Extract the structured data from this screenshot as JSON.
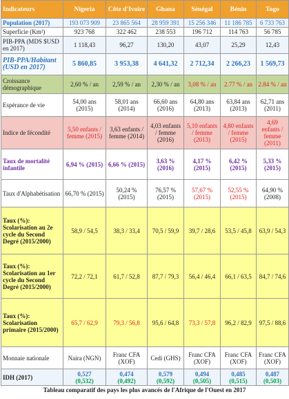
{
  "header": {
    "cells": [
      "Indicateurs",
      "Nigeria",
      "Côte d'Ivoire",
      "Ghana",
      "Sénégal",
      "Bénin",
      "Togo"
    ]
  },
  "rows": [
    {
      "label": "Population (2017)",
      "cells": [
        "193 073 909",
        "23 865 564",
        "28 959 391",
        "15 256 346",
        "11 186 785",
        "6 733 763"
      ]
    },
    {
      "label": "Superficie (Km²)",
      "cells": [
        "923 768",
        "322 462",
        "238 553",
        "196 712",
        "114 763",
        "56 785"
      ]
    },
    {
      "label": "PIB-PPA (MDS $USD en 2017)",
      "cells": [
        "1 118,43",
        "96,27",
        "130,20",
        "43,07",
        "25,29",
        "12,43"
      ]
    },
    {
      "label": "PIB-PPA/Habitant (USD en 2017)",
      "cells": [
        "5 860,85",
        "3 953,38",
        "4 641,32",
        "2 712,34",
        "2 266,23",
        "1 569,73"
      ]
    },
    {
      "label": "Croissance démographique",
      "cells": [
        "2,60 % / an",
        "2,59 % / an",
        "2,30 % / an",
        "3,08 % / an",
        "2.77 % / an",
        "2.84 % / an"
      ]
    },
    {
      "label": "Espérance de vie",
      "cells": [
        "54,00 ans (2015)",
        "58,01 ans (2014)",
        "66,60 ans (2016)",
        "64,80 ans (2013)",
        "63,84 ans (2013)",
        "62,71 ans (2011)"
      ]
    },
    {
      "label": "Indice de fécondité",
      "cells": [
        "5,50 enfants / femme (2015)",
        "3,63 enfants / femme (2014)",
        "4,03 enfants / femme (2016)",
        "5,10 enfants / femme (2013)",
        "4,80 enfants / femme (2015)",
        "4,69 enfants / femme (2011)"
      ]
    },
    {
      "label": "Taux de mortalité infantile",
      "cells": [
        "6,94 % (2015)",
        "6,66 % (2015)",
        "3,63 % (2016)",
        "4,17 % (2015)",
        "6,42 % (2015)",
        "5,33 % (2015)"
      ]
    },
    {
      "label": "Taux d'Alphabétisation",
      "cells": [
        "66,70 % (2015)",
        "50,24 % (2015)",
        "76,57 % (2015)",
        "57,67 % (2015)",
        "52,55 % (2015)",
        "64,90 % (2008)"
      ]
    },
    {
      "label": "Taux (%): Scolarisation au 2e cycle du Second Degré (2015/2000)",
      "cells": [
        "58,9 / 54,5",
        "38,3 / 33,4",
        "70,5 / 59,9",
        "39,7 / 28,6",
        "53,5 / 45,8",
        "63,9 / 54,3"
      ]
    },
    {
      "label": "Taux (%): Scolarisation au 1er cycle du Second Degré (2015/2000)",
      "cells": [
        "72,2 / 72,1",
        "61,7 / 52,8",
        "87,7 / 79,3",
        "56,4 / 46,4",
        "66,1 / 63,5",
        "84,7 / 74,6"
      ]
    },
    {
      "label": "Taux (%): Scolarisation primaire (2015/2000)",
      "cells": [
        "65,7 / 62,9",
        "79,3 / 56,8",
        "95,6 / 64,8",
        "73,3 / 57,8",
        "96,2 / 82,9",
        "97,5 / 88,6"
      ]
    },
    {
      "label": "Monnaie nationale",
      "cells": [
        "Naira (NGN)",
        "Franc CFA (XOF)",
        "Cedi (GHS)",
        "Franc CFA (XOF)",
        "Franc CFA (XOF)",
        "Franc CFA (XOF)"
      ]
    },
    {
      "label": "IDH (2017)",
      "cells": [
        [
          "0,527",
          "(0,532)"
        ],
        [
          "0,474",
          "(0,492)"
        ],
        [
          "0,579",
          "(0,592)"
        ],
        [
          "0,494",
          "(0,505)"
        ],
        [
          "0,485",
          "(0,515)"
        ],
        [
          "0,487",
          "(0,503)"
        ]
      ]
    }
  ],
  "caption": "Tableau comparatif des pays les plus avancés de l'Afrique de l'Ouest en 2017"
}
